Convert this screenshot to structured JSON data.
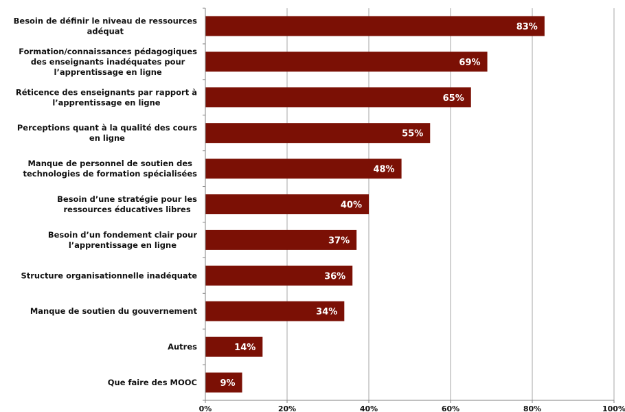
{
  "chart_data": {
    "type": "bar",
    "orientation": "horizontal",
    "categories": [
      [
        "Besoin de définir le niveau de ressources",
        "adéquat"
      ],
      [
        "Formation/connaissances pédagogiques",
        "des enseignants inadéquates pour",
        "l’apprentissage en ligne"
      ],
      [
        "Réticence des enseignants par rapport à",
        "l’apprentissage en ligne"
      ],
      [
        "Perceptions quant à la qualité des cours",
        "en ligne"
      ],
      [
        "Manque de personnel de soutien des",
        "technologies de formation spécialisées"
      ],
      [
        "Besoin d’une stratégie pour les",
        "ressources éducatives libres"
      ],
      [
        "Besoin d’un fondement clair pour",
        "l’apprentissage en ligne"
      ],
      [
        "Structure organisationnelle inadéquate"
      ],
      [
        "Manque de soutien du gouvernement"
      ],
      [
        "Autres"
      ],
      [
        "Que faire des MOOC"
      ]
    ],
    "values": [
      83,
      69,
      65,
      55,
      48,
      40,
      37,
      36,
      34,
      14,
      9
    ],
    "value_labels": [
      "83%",
      "69%",
      "65%",
      "55%",
      "48%",
      "40%",
      "37%",
      "36%",
      "34%",
      "14%",
      "9%"
    ],
    "xlim": [
      0,
      100
    ],
    "x_ticks": [
      0,
      20,
      40,
      60,
      80,
      100
    ],
    "x_tick_labels": [
      "0%",
      "20%",
      "40%",
      "60%",
      "80%",
      "100%"
    ],
    "grid": true,
    "legend": false,
    "title": "",
    "xlabel": "",
    "ylabel": "",
    "colors": {
      "bar": "#7b1005",
      "grid": "#a6a6a6",
      "axis": "#808080"
    }
  }
}
